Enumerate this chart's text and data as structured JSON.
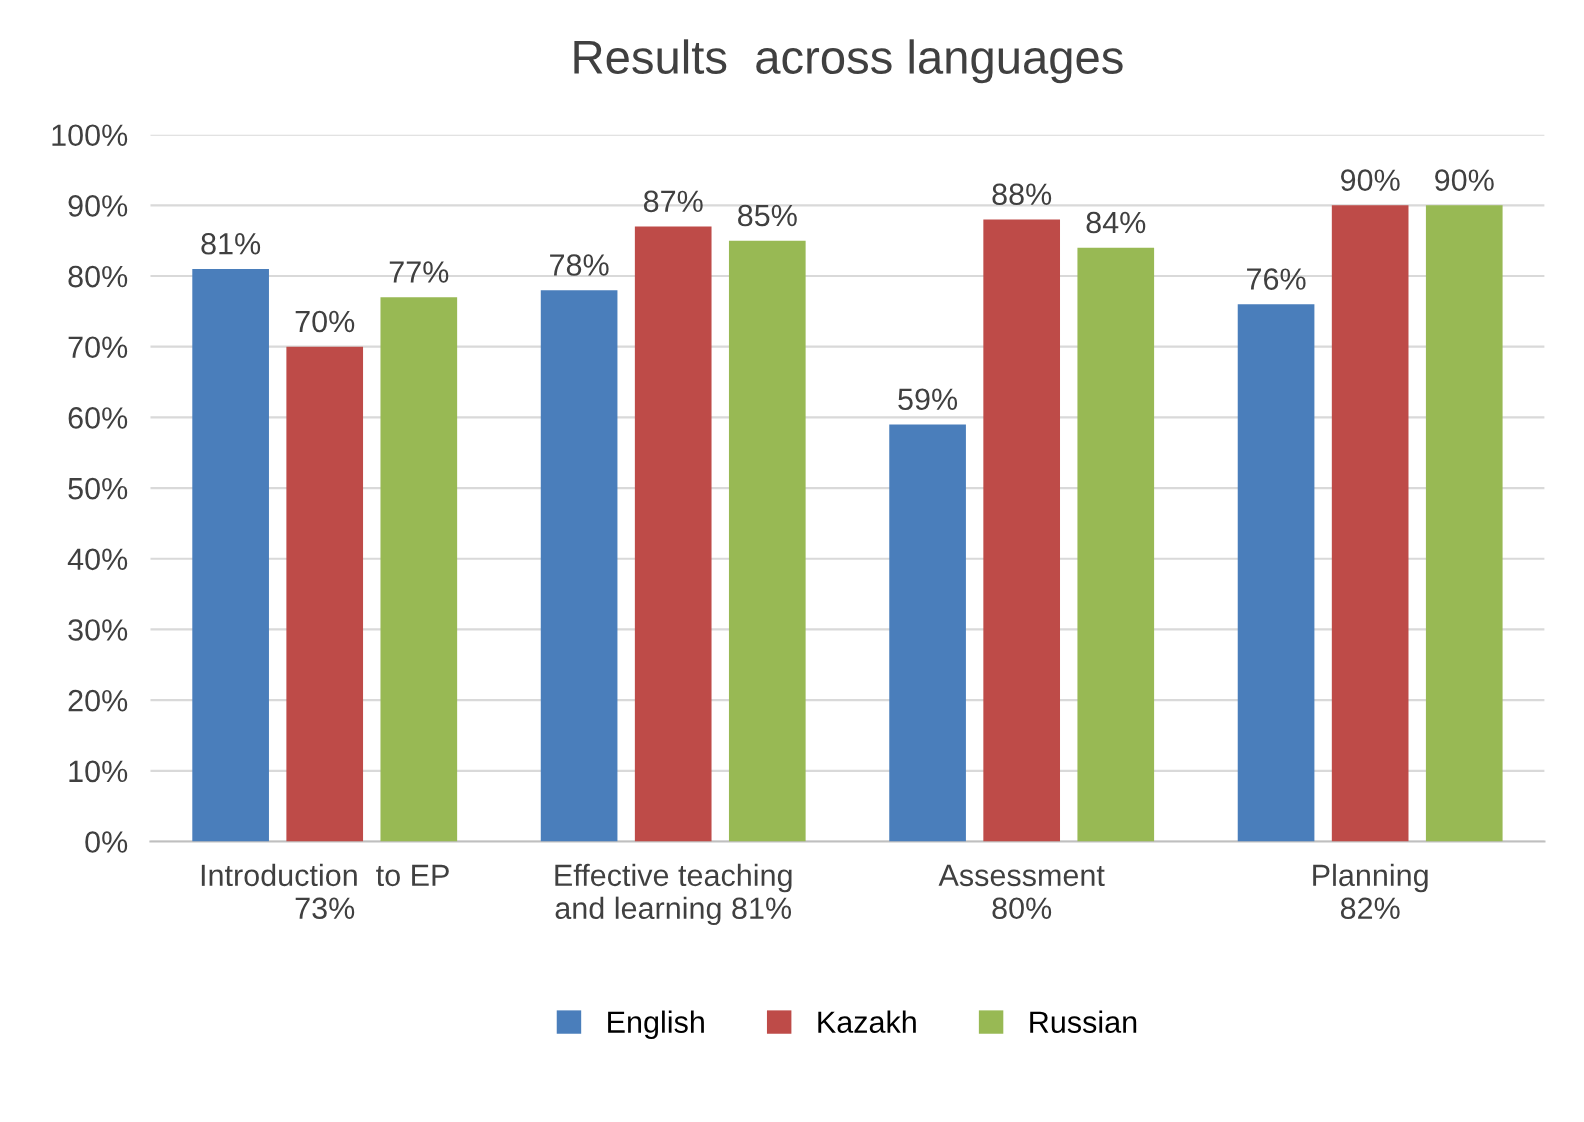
{
  "chart_data": {
    "type": "bar",
    "title": "Results  across languages",
    "categories": [
      "Introduction  to EP\n73%",
      "Effective teaching\nand learning 81%",
      "Assessment\n80%",
      "Planning\n82%"
    ],
    "series": [
      {
        "name": "English",
        "color": "#4a7ebb",
        "values": [
          81,
          78,
          59,
          76
        ],
        "value_labels": [
          "81%",
          "78%",
          "59%",
          "76%"
        ]
      },
      {
        "name": "Kazakh",
        "color": "#be4b48",
        "values": [
          70,
          87,
          88,
          90
        ],
        "value_labels": [
          "70%",
          "87%",
          "88%",
          "90%"
        ]
      },
      {
        "name": "Russian",
        "color": "#98b954",
        "values": [
          77,
          85,
          84,
          90
        ],
        "value_labels": [
          "77%",
          "85%",
          "84%",
          "90%"
        ]
      }
    ],
    "ylim": [
      0,
      100
    ],
    "yticks": [
      {
        "value": 0,
        "label": "0%"
      },
      {
        "value": 10,
        "label": "10%"
      },
      {
        "value": 20,
        "label": "20%"
      },
      {
        "value": 30,
        "label": "30%"
      },
      {
        "value": 40,
        "label": "40%"
      },
      {
        "value": 50,
        "label": "50%"
      },
      {
        "value": 60,
        "label": "60%"
      },
      {
        "value": 70,
        "label": "70%"
      },
      {
        "value": 80,
        "label": "80%"
      },
      {
        "value": 90,
        "label": "90%"
      },
      {
        "value": 100,
        "label": "100%"
      }
    ],
    "grid": "y",
    "legend": "bottom"
  }
}
